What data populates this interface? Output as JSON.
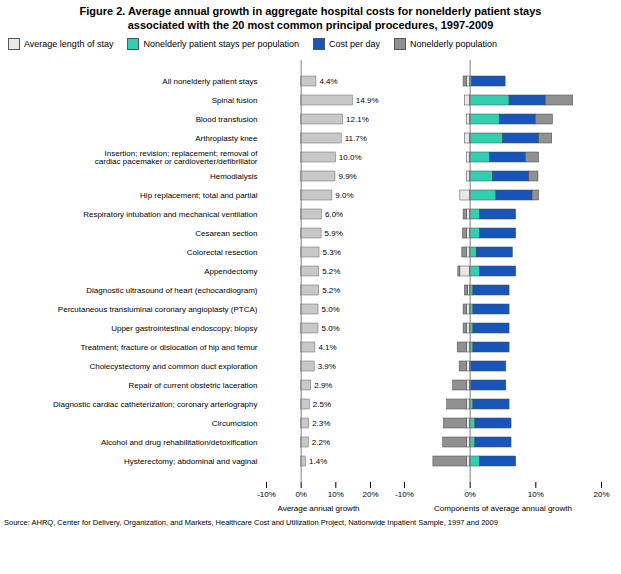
{
  "chart_data": [
    {
      "type": "bar",
      "title": "Figure 2.  Average annual growth in aggregate hospital costs for nonelderly patient stays",
      "subtitle": "associated with the 20 most common principal procedures, 1997-2009",
      "source": "Source: AHRQ, Center for Delivery, Organization, and Markets, Healthcare Cost and Utilization Project, Nationwide Inpatient Sample, 1997 and 2009",
      "orientation": "horizontal",
      "categories": [
        "All nonelderly patient stays",
        "Spinal fusion",
        "Blood transfusion",
        "Arthroplasty knee",
        "Insertion; revision; replacement; removal of\ncardiac pacemaker or cardioverter/defibrillator",
        "Hemodialysis",
        "Hip replacement; total and partial",
        "Respiratory intubation and mechanical ventilation",
        "Cesarean section",
        "Colorectal resection",
        "Appendectomy",
        "Diagnostic ultrasound of heart (echocardiogram)",
        "Percutaneous transluminal coronary angioplasty (PTCA)",
        "Upper gastrointestinal endoscopy; biopsy",
        "Treatment; fracture or dislocation of hip and femur",
        "Cholecystectomy and common duct exploration",
        "Repair of current obstetric laceration",
        "Diagnostic cardiac catheterization; coronary arteriography",
        "Circumcision",
        "Alcohol and drug rehabilitation/detoxification",
        "Hysterectomy; abdominal and vaginal"
      ],
      "values": [
        4.4,
        14.9,
        12.1,
        11.7,
        10.0,
        9.9,
        9.0,
        6.0,
        5.9,
        5.3,
        5.2,
        5.2,
        5.0,
        5.0,
        4.1,
        3.9,
        2.9,
        2.5,
        2.3,
        2.2,
        1.4
      ],
      "value_labels": [
        "4.4%",
        "14.9%",
        "12.1%",
        "11.7%",
        "10.0%",
        "9.9%",
        "9.0%",
        "6.0%",
        "5.9%",
        "5.3%",
        "5.2%",
        "5.2%",
        "5.0%",
        "5.0%",
        "4.1%",
        "3.9%",
        "2.9%",
        "2.5%",
        "2.3%",
        "2.2%",
        "1.4%"
      ],
      "data_labels": true,
      "color": "#c8c8c8",
      "xlim": [
        -10,
        20
      ],
      "xticks": [
        {
          "value": -10,
          "label": "-10%"
        },
        {
          "value": 0,
          "label": "0%"
        },
        {
          "value": 10,
          "label": "10%"
        },
        {
          "value": 20,
          "label": "20%"
        }
      ],
      "xlabel": "Average annual growth",
      "grid": false
    },
    {
      "type": "bar",
      "orientation": "horizontal",
      "stacked": true,
      "categories": [
        "All nonelderly patient stays",
        "Spinal fusion",
        "Blood transfusion",
        "Arthroplasty knee",
        "Insertion; revision; replacement; removal of\ncardiac pacemaker or cardioverter/defibrillator",
        "Hemodialysis",
        "Hip replacement; total and partial",
        "Respiratory intubation and mechanical ventilation",
        "Cesarean section",
        "Colorectal resection",
        "Appendectomy",
        "Diagnostic ultrasound of heart (echocardiogram)",
        "Percutaneous transluminal coronary angioplasty (PTCA)",
        "Upper gastrointestinal endoscopy; biopsy",
        "Treatment; fracture or dislocation of hip and femur",
        "Cholecystectomy and common duct exploration",
        "Repair of current obstetric laceration",
        "Diagnostic cardiac catheterization; coronary arteriography",
        "Circumcision",
        "Alcohol and drug rehabilitation/detoxification",
        "Hysterectomy; abdominal and vaginal"
      ],
      "series": [
        {
          "name": "Average length of stay",
          "color": "#e8e8e8",
          "values": [
            -0.5,
            -0.8,
            -0.5,
            -0.8,
            -0.5,
            -0.5,
            -1.5,
            -0.5,
            -0.5,
            -0.5,
            -1.5,
            -0.3,
            -0.5,
            -0.5,
            -0.5,
            -0.5,
            -0.5,
            -0.5,
            -0.5,
            -0.5,
            -0.5
          ]
        },
        {
          "name": "Nonelderly patient stays per population",
          "color": "#30d0b0",
          "values": [
            0.3,
            6.0,
            4.5,
            5.0,
            3.0,
            3.5,
            4.0,
            1.5,
            1.5,
            1.0,
            1.5,
            0.5,
            0.5,
            0.5,
            0.5,
            0.0,
            0.0,
            0.5,
            0.8,
            0.8,
            1.5
          ]
        },
        {
          "name": "Cost per day",
          "color": "#1855bb",
          "values": [
            5.1,
            5.5,
            5.5,
            5.5,
            5.5,
            5.5,
            5.5,
            5.5,
            5.5,
            5.5,
            5.5,
            5.5,
            5.5,
            5.5,
            5.5,
            5.5,
            5.5,
            5.5,
            5.5,
            5.5,
            5.5
          ]
        },
        {
          "name": "Nonelderly population",
          "color": "#909090",
          "values": [
            -0.5,
            4.2,
            2.6,
            2.0,
            2.0,
            1.4,
            1.0,
            -0.5,
            -0.6,
            -0.7,
            -0.3,
            -0.5,
            -0.5,
            -0.5,
            -1.4,
            -1.1,
            -2.1,
            -3.0,
            -3.5,
            -3.6,
            -5.1
          ]
        }
      ],
      "xlim": [
        -10,
        20
      ],
      "xticks": [
        {
          "value": -10,
          "label": "-10%"
        },
        {
          "value": 0,
          "label": "0%"
        },
        {
          "value": 10,
          "label": "10%"
        },
        {
          "value": 20,
          "label": "20%"
        }
      ],
      "xlabel": "Components of average annual growth",
      "legend": "top",
      "grid": false
    }
  ]
}
